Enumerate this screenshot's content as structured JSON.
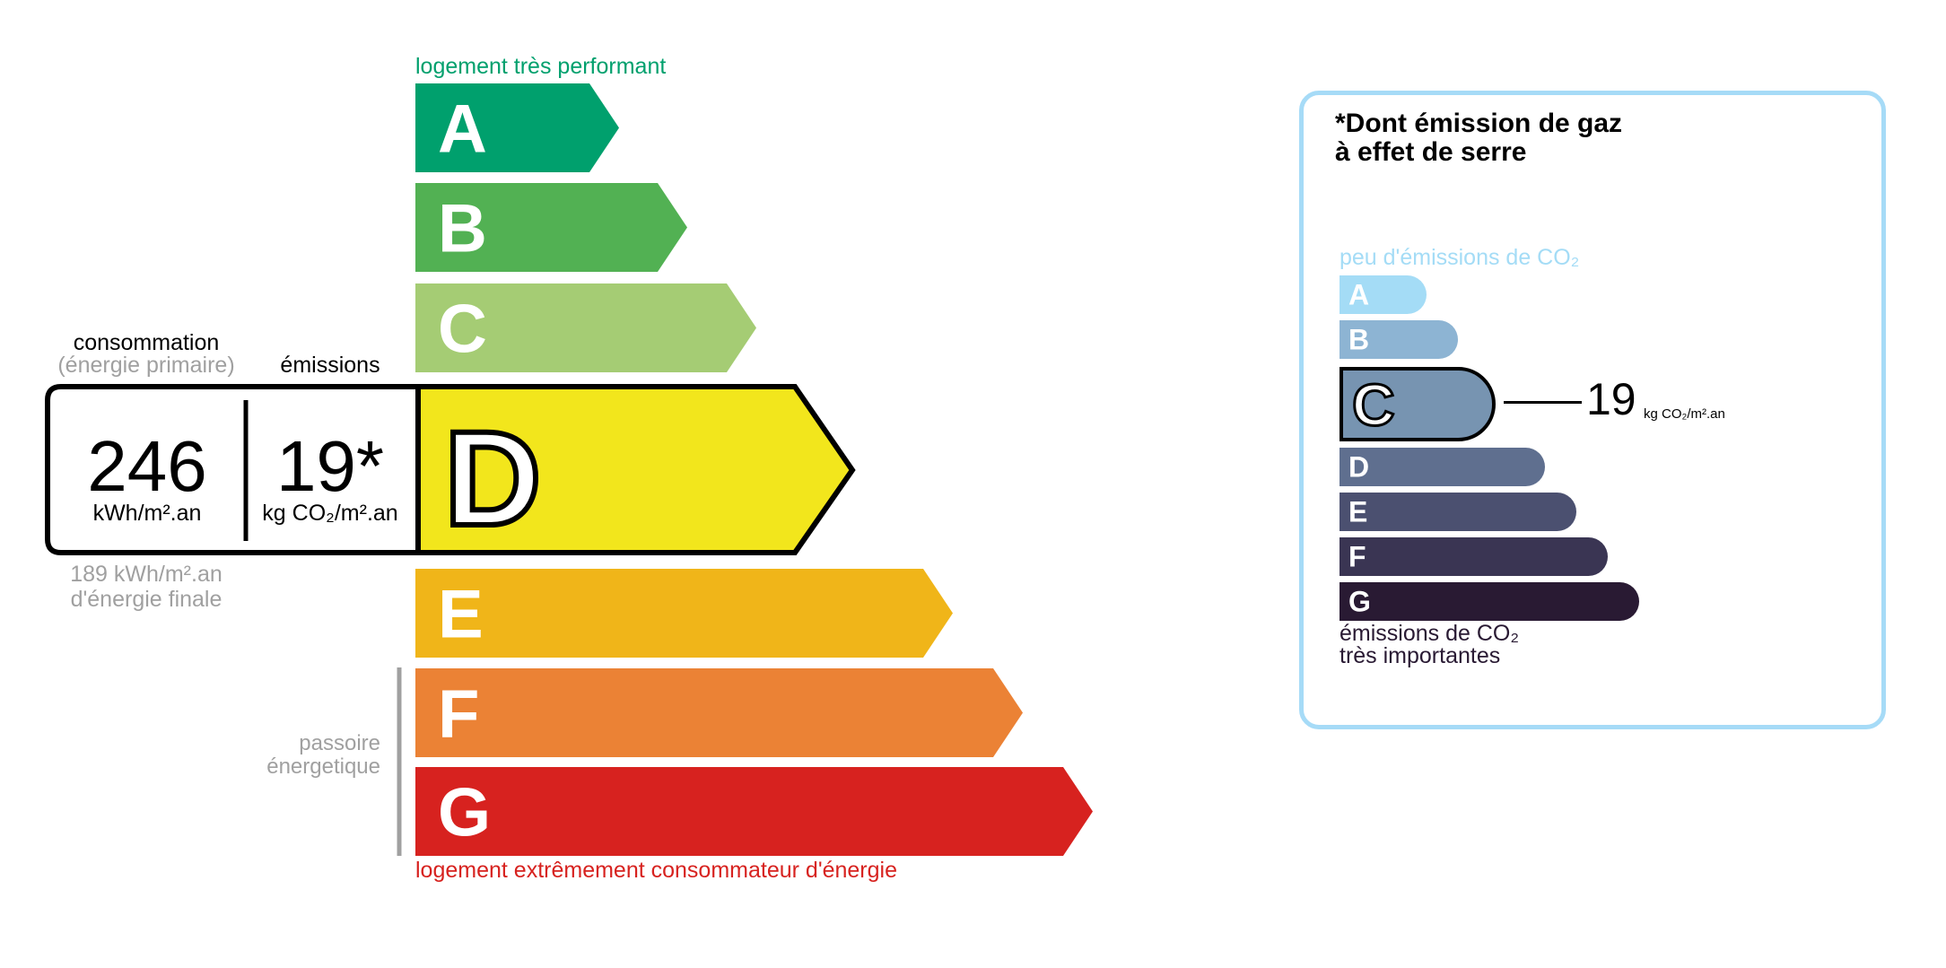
{
  "energy": {
    "top_label": "logement très performant",
    "bottom_label": "logement extrêmement consommateur d'énergie",
    "passoire_label_1": "passoire",
    "passoire_label_2": "énergetique",
    "classes": [
      {
        "letter": "A",
        "color": "#00a06d"
      },
      {
        "letter": "B",
        "color": "#52b153"
      },
      {
        "letter": "C",
        "color": "#a5cc74"
      },
      {
        "letter": "D",
        "color": "#f2e61c"
      },
      {
        "letter": "E",
        "color": "#f0b519"
      },
      {
        "letter": "F",
        "color": "#eb8235"
      },
      {
        "letter": "G",
        "color": "#d7221f"
      }
    ],
    "current_class": "D",
    "consumption_label": "consommation",
    "consumption_sub": "(énergie primaire)",
    "emissions_label": "émissions",
    "consumption_value": "246",
    "consumption_unit": "kWh/m².an",
    "emissions_value": "19*",
    "emissions_unit": "kg CO₂/m².an",
    "final_energy_1": "189 kWh/m².an",
    "final_energy_2": "d'énergie finale",
    "top_color": "#00a06d",
    "bottom_color": "#d7221f"
  },
  "ges": {
    "title_1": "*Dont émission de gaz",
    "title_2": "à effet de serre",
    "top_label": "peu d'émissions de CO₂",
    "bottom_label_1": "émissions de CO₂",
    "bottom_label_2": "très importantes",
    "classes": [
      {
        "letter": "A",
        "color": "#a4dcf6"
      },
      {
        "letter": "B",
        "color": "#8db4d3"
      },
      {
        "letter": "C",
        "color": "#7794b1"
      },
      {
        "letter": "D",
        "color": "#5f6f8f"
      },
      {
        "letter": "E",
        "color": "#4b5070"
      },
      {
        "letter": "F",
        "color": "#3a3553"
      },
      {
        "letter": "G",
        "color": "#291a33"
      }
    ],
    "current_class": "C",
    "value": "19",
    "unit": "kg CO₂/m².an",
    "border_color": "#a6dbf7"
  }
}
